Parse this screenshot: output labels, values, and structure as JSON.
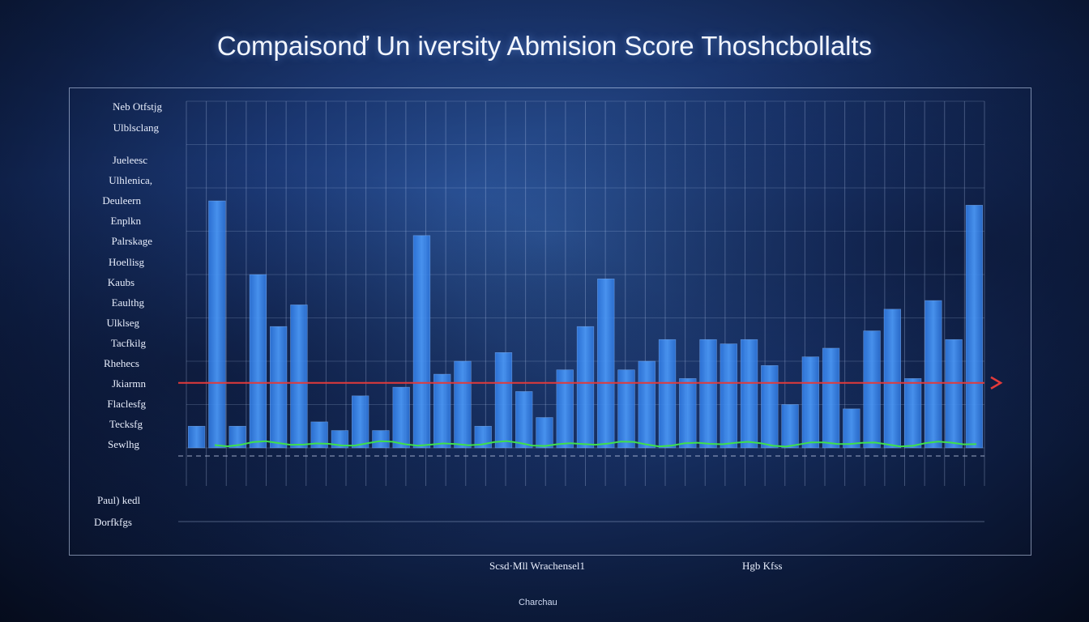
{
  "chart_data": {
    "type": "bar",
    "title": "Compaisonď Un iversity Abmision Score Thoshcbollalts",
    "ylabels": [
      "Neb Otfstjg",
      "Ulblsclang",
      "Jueleesc",
      "Ulhlenica,",
      "Deuleern",
      "Enplkn",
      "Palrskage",
      "Hoellisg",
      "Kaubs",
      "Eaulthg",
      "Ulklseg",
      "Tacfkilg",
      "Rhehecs",
      "Jkiarmn",
      "Flaclesfg",
      "Tecksfg",
      "Sewlhg"
    ],
    "bottom_labels": [
      "Paul) kedl",
      "Dorfkfgs"
    ],
    "x_axis_labels": [
      "Scsd·Mll Wrachensel1",
      "Hgb Kfss"
    ],
    "credit": "Charchau",
    "values": [
      0.5,
      5.7,
      0.5,
      4.0,
      2.8,
      3.3,
      0.6,
      0.4,
      1.2,
      0.4,
      1.4,
      4.9,
      1.7,
      2.0,
      0.5,
      2.2,
      1.3,
      0.7,
      1.8,
      2.8,
      3.9,
      1.8,
      2.0,
      2.5,
      1.6,
      2.5,
      2.4,
      2.5,
      1.9,
      1.0,
      2.1,
      2.3,
      0.9,
      2.7,
      3.2,
      1.6,
      3.4,
      2.5,
      5.6
    ],
    "threshold": 1.5,
    "series": [
      {
        "name": "",
        "color": "#2f7be6",
        "values": [
          0.5,
          5.7,
          0.5,
          4.0,
          2.8,
          3.3,
          0.6,
          0.4,
          1.2,
          0.4,
          1.4,
          4.9,
          1.7,
          2.0,
          0.5,
          2.2,
          1.3,
          0.7,
          1.8,
          2.8,
          3.9,
          1.8,
          2.0,
          2.5,
          1.6,
          2.5,
          2.4,
          2.5,
          1.9,
          1.0,
          2.1,
          2.3,
          0.9,
          2.7,
          3.2,
          1.6,
          3.4,
          2.5,
          5.6
        ]
      }
    ],
    "ylim": [
      0,
      8
    ],
    "grid": true,
    "colors": {
      "bar": "#2f7be6",
      "bar_top": "#4a96f4",
      "threshold": "#e23a3a",
      "baseline": "#3fe04a"
    }
  }
}
